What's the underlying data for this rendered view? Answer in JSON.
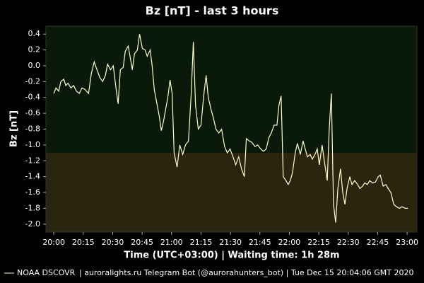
{
  "chart_data": {
    "type": "line",
    "title": "Bz [nT] - last 3 hours",
    "y_label": "Bz [nT]",
    "x_label": "Time (UTC+03:00) | Waiting time: 1h 28m",
    "footer": "| auroralights.ru Telegram Bot (@aurorahunters_bot) | Tue Dec 15 20:04:06 GMT 2020",
    "xlim": [
      -4,
      185
    ],
    "ylim": [
      -2.1,
      0.5
    ],
    "xticks": [
      {
        "value": 0,
        "label": "20:00"
      },
      {
        "value": 15,
        "label": "20:15"
      },
      {
        "value": 30,
        "label": "20:30"
      },
      {
        "value": 45,
        "label": "20:45"
      },
      {
        "value": 60,
        "label": "21:00"
      },
      {
        "value": 75,
        "label": "21:15"
      },
      {
        "value": 90,
        "label": "21:30"
      },
      {
        "value": 105,
        "label": "21:45"
      },
      {
        "value": 120,
        "label": "22:00"
      },
      {
        "value": 135,
        "label": "22:15"
      },
      {
        "value": 150,
        "label": "22:30"
      },
      {
        "value": 165,
        "label": "22:45"
      },
      {
        "value": 180,
        "label": "23:00"
      }
    ],
    "yticks": [
      0.4,
      0.2,
      {
        "value": 0,
        "label": "0.0"
      },
      -0.2,
      -0.4,
      -0.6,
      -0.8,
      {
        "value": -1,
        "label": "-1.0"
      },
      -1.2,
      -1.4,
      -1.6,
      -1.8,
      {
        "value": -2,
        "label": "-2.0"
      }
    ],
    "bands": [
      {
        "from": -1.1,
        "to": 0.5,
        "color": "#0a1a0a"
      },
      {
        "from": -2.1,
        "to": -1.1,
        "color": "#29250f"
      }
    ],
    "x": [
      0,
      1.1,
      2.5,
      3.6,
      5.1,
      6.1,
      7.2,
      8.7,
      10.1,
      11.5,
      13.0,
      14.4,
      15.9,
      17.7,
      19.1,
      20.6,
      22.0,
      23.5,
      24.9,
      26.3,
      27.4,
      28.9,
      30.3,
      31.8,
      32.8,
      33.9,
      35.4,
      36.4,
      37.9,
      39.0,
      40.0,
      41.1,
      42.6,
      43.7,
      45.1,
      46.5,
      47.6,
      49.1,
      50.1,
      51.2,
      52.7,
      53.8,
      54.8,
      55.9,
      57.0,
      58.1,
      59.2,
      60.3,
      61.3,
      62.8,
      64.2,
      65.7,
      67.1,
      68.6,
      70.0,
      71.1,
      72.2,
      73.6,
      75.0,
      76.5,
      77.6,
      78.7,
      80.1,
      81.2,
      82.6,
      84.1,
      85.5,
      87.0,
      88.4,
      89.8,
      91.3,
      92.7,
      94.2,
      95.6,
      97.1,
      98.1,
      99.6,
      101.0,
      102.5,
      103.9,
      105.4,
      106.8,
      108.2,
      109.7,
      110.8,
      112.2,
      113.7,
      114.7,
      115.8,
      116.9,
      118.3,
      119.4,
      120.5,
      121.6,
      123.0,
      124.1,
      125.6,
      127.0,
      128.1,
      129.2,
      130.6,
      131.7,
      133.1,
      134.2,
      135.3,
      136.7,
      137.8,
      139.3,
      140.3,
      141.4,
      142.5,
      143.6,
      144.7,
      146.1,
      147.2,
      148.3,
      149.4,
      150.8,
      151.9,
      153.3,
      154.8,
      155.9,
      157.3,
      158.4,
      159.8,
      160.9,
      162.4,
      163.8,
      165.3,
      166.3,
      167.8,
      169.2,
      170.3,
      171.7,
      173.2,
      174.6,
      176.1,
      177.5,
      179.0,
      180.4
    ],
    "series": [
      {
        "name": "NOAA DSCOVR",
        "color": "#ffffcc",
        "values": [
          -0.35,
          -0.28,
          -0.32,
          -0.2,
          -0.17,
          -0.25,
          -0.22,
          -0.28,
          -0.25,
          -0.32,
          -0.35,
          -0.28,
          -0.3,
          -0.35,
          -0.1,
          0.05,
          -0.05,
          -0.15,
          -0.2,
          -0.12,
          0.02,
          -0.05,
          0.0,
          -0.3,
          -0.48,
          -0.05,
          -0.02,
          0.18,
          0.25,
          0.1,
          -0.05,
          0.15,
          0.2,
          0.4,
          0.22,
          0.2,
          0.12,
          0.2,
          0.0,
          -0.3,
          -0.5,
          -0.65,
          -0.82,
          -0.7,
          -0.55,
          -0.4,
          -0.18,
          -0.35,
          -1.1,
          -1.28,
          -1.0,
          -1.12,
          -1.0,
          -0.95,
          -0.35,
          0.3,
          -0.5,
          -0.8,
          -0.75,
          -0.35,
          -0.12,
          -0.4,
          -0.55,
          -0.65,
          -0.8,
          -0.85,
          -0.8,
          -1.02,
          -1.1,
          -1.05,
          -1.15,
          -1.25,
          -1.15,
          -1.3,
          -1.4,
          -0.92,
          -0.95,
          -0.97,
          -1.02,
          -1.0,
          -1.05,
          -1.08,
          -1.05,
          -0.9,
          -0.85,
          -0.75,
          -0.75,
          -0.5,
          -0.38,
          -1.4,
          -1.45,
          -1.5,
          -1.45,
          -1.35,
          -1.1,
          -0.98,
          -1.12,
          -0.95,
          -1.05,
          -1.15,
          -1.12,
          -1.18,
          -1.12,
          -1.05,
          -1.25,
          -1.0,
          -1.2,
          -1.45,
          -0.82,
          -0.35,
          -1.75,
          -1.98,
          -1.55,
          -1.3,
          -1.6,
          -1.75,
          -1.55,
          -1.4,
          -1.5,
          -1.45,
          -1.5,
          -1.55,
          -1.52,
          -1.48,
          -1.5,
          -1.45,
          -1.48,
          -1.47,
          -1.4,
          -1.38,
          -1.52,
          -1.5,
          -1.55,
          -1.6,
          -1.75,
          -1.78,
          -1.8,
          -1.78,
          -1.8,
          -1.8
        ]
      }
    ]
  }
}
